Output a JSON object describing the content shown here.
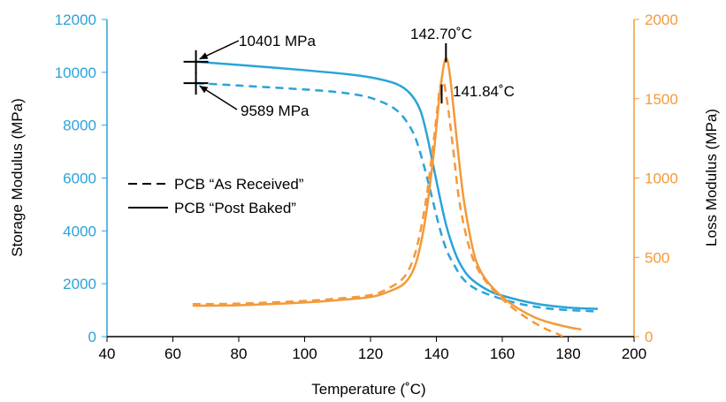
{
  "colors": {
    "storage": "#2aa3d9",
    "loss": "#f39a3a",
    "axis": "#000000",
    "annotation": "#000000"
  },
  "chart_data": {
    "type": "line",
    "xlabel": "Temperature (˚C)",
    "ylabel_left": "Storage Modulus (MPa)",
    "ylabel_right": "Loss Modulus (MPa)",
    "xlim": [
      40,
      200
    ],
    "ylim_left": [
      0,
      12000
    ],
    "ylim_right": [
      0,
      2000
    ],
    "x_ticks": [
      "40",
      "60",
      "80",
      "100",
      "120",
      "140",
      "160",
      "180",
      "200"
    ],
    "y_ticks_left": [
      "0",
      "2000",
      "4000",
      "6000",
      "8000",
      "10000",
      "12000"
    ],
    "y_ticks_right": [
      "0",
      "500",
      "1000",
      "1500",
      "2000"
    ],
    "legend": {
      "placement": "middle-left",
      "entries": [
        {
          "label": "PCB “As Received”",
          "style": "dashed"
        },
        {
          "label": "PCB “Post Baked”",
          "style": "solid"
        }
      ]
    },
    "annotations": [
      {
        "text": "10401 MPa"
      },
      {
        "text": "9589 MPa"
      },
      {
        "text": "142.70˚C"
      },
      {
        "text": "141.84˚C"
      }
    ],
    "series": [
      {
        "axis": "left",
        "color": "storage",
        "style": "solid",
        "points": [
          [
            67,
            10401
          ],
          [
            80,
            10280
          ],
          [
            100,
            10080
          ],
          [
            115,
            9900
          ],
          [
            122,
            9760
          ],
          [
            128,
            9550
          ],
          [
            132,
            9200
          ],
          [
            135,
            8600
          ],
          [
            137,
            7700
          ],
          [
            139,
            6500
          ],
          [
            141,
            5300
          ],
          [
            143,
            4200
          ],
          [
            145,
            3400
          ],
          [
            147,
            2800
          ],
          [
            150,
            2250
          ],
          [
            155,
            1800
          ],
          [
            160,
            1550
          ],
          [
            170,
            1250
          ],
          [
            180,
            1100
          ],
          [
            189,
            1050
          ]
        ]
      },
      {
        "axis": "left",
        "color": "storage",
        "style": "dashed",
        "points": [
          [
            67,
            9589
          ],
          [
            80,
            9500
          ],
          [
            100,
            9350
          ],
          [
            110,
            9250
          ],
          [
            118,
            9100
          ],
          [
            123,
            8900
          ],
          [
            127,
            8650
          ],
          [
            130,
            8300
          ],
          [
            133,
            7700
          ],
          [
            135,
            7000
          ],
          [
            137,
            6100
          ],
          [
            139,
            5100
          ],
          [
            141,
            4100
          ],
          [
            143,
            3300
          ],
          [
            145,
            2800
          ],
          [
            148,
            2200
          ],
          [
            152,
            1800
          ],
          [
            158,
            1500
          ],
          [
            165,
            1250
          ],
          [
            175,
            1050
          ],
          [
            189,
            950
          ]
        ]
      },
      {
        "axis": "right",
        "color": "loss",
        "style": "solid",
        "points": [
          [
            66,
            195
          ],
          [
            80,
            198
          ],
          [
            100,
            215
          ],
          [
            110,
            230
          ],
          [
            120,
            250
          ],
          [
            125,
            280
          ],
          [
            130,
            330
          ],
          [
            133,
            420
          ],
          [
            135,
            560
          ],
          [
            137,
            790
          ],
          [
            139,
            1120
          ],
          [
            140,
            1320
          ],
          [
            141,
            1530
          ],
          [
            142,
            1680
          ],
          [
            142.7,
            1750
          ],
          [
            143.5,
            1730
          ],
          [
            144.5,
            1580
          ],
          [
            146,
            1280
          ],
          [
            148,
            910
          ],
          [
            150,
            660
          ],
          [
            152,
            480
          ],
          [
            155,
            360
          ],
          [
            160,
            250
          ],
          [
            165,
            175
          ],
          [
            170,
            120
          ],
          [
            175,
            85
          ],
          [
            180,
            60
          ],
          [
            184,
            45
          ]
        ]
      },
      {
        "axis": "right",
        "color": "loss",
        "style": "dashed",
        "points": [
          [
            66,
            205
          ],
          [
            80,
            208
          ],
          [
            100,
            225
          ],
          [
            110,
            240
          ],
          [
            120,
            262
          ],
          [
            125,
            300
          ],
          [
            130,
            370
          ],
          [
            133,
            490
          ],
          [
            135,
            650
          ],
          [
            137,
            880
          ],
          [
            138.5,
            1120
          ],
          [
            140,
            1380
          ],
          [
            141,
            1560
          ],
          [
            141.84,
            1620
          ],
          [
            142.5,
            1580
          ],
          [
            143.5,
            1450
          ],
          [
            145,
            1200
          ],
          [
            147,
            850
          ],
          [
            150,
            560
          ],
          [
            153,
            410
          ],
          [
            157,
            300
          ],
          [
            162,
            200
          ],
          [
            168,
            110
          ],
          [
            173,
            50
          ],
          [
            177,
            15
          ],
          [
            180,
            -20
          ]
        ]
      }
    ]
  }
}
